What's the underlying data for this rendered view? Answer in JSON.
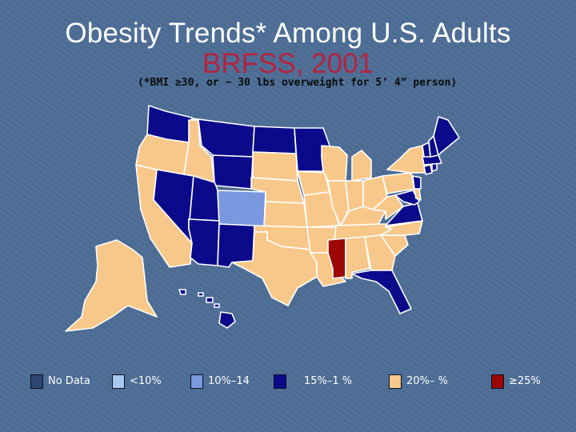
{
  "slide": {
    "title": "Obesity Trends* Among U.S. Adults",
    "subtitle": "BRFSS, 2001",
    "note": "(*BMI ≥30, or ~ 30 lbs overweight for 5’ 4” person)"
  },
  "colors": {
    "no_data": "#2f4770",
    "lt10": "#a8c8f0",
    "c10_14": "#7a98e0",
    "c15_19": "#0a0a8a",
    "c20_24": "#f8c88a",
    "ge25": "#9c0606"
  },
  "legend": [
    {
      "label": "No Data",
      "color_key": "no_data"
    },
    {
      "label": "<10%",
      "color_key": "lt10"
    },
    {
      "label": "10%–14",
      "color_key": "c10_14"
    },
    {
      "label": "15%–1   %",
      "color_key": "c15_19"
    },
    {
      "label": "20%–   %",
      "color_key": "c20_24"
    },
    {
      "label": "≥25%",
      "color_key": "ge25"
    }
  ],
  "map": {
    "states": {
      "WA": "c15_19",
      "OR": "c20_24",
      "CA": "c20_24",
      "NV": "c15_19",
      "ID": "c20_24",
      "MT": "c15_19",
      "WY": "c15_19",
      "UT": "c15_19",
      "AZ": "c15_19",
      "CO": "c10_14",
      "NM": "c15_19",
      "ND": "c15_19",
      "SD": "c20_24",
      "NE": "c20_24",
      "KS": "c20_24",
      "OK": "c20_24",
      "TX": "c20_24",
      "MN": "c15_19",
      "IA": "c20_24",
      "MO": "c20_24",
      "AR": "c20_24",
      "LA": "c20_24",
      "WI": "c20_24",
      "IL": "c20_24",
      "MI": "c20_24",
      "IN": "c20_24",
      "OH": "c20_24",
      "KY": "c20_24",
      "TN": "c20_24",
      "MS": "ge25",
      "AL": "c20_24",
      "GA": "c20_24",
      "FL": "c15_19",
      "SC": "c20_24",
      "NC": "c20_24",
      "VA": "c15_19",
      "WV": "c20_24",
      "PA": "c20_24",
      "NY": "c20_24",
      "MD": "c15_19",
      "DE": "c20_24",
      "NJ": "c15_19",
      "CT": "c15_19",
      "RI": "c15_19",
      "MA": "c15_19",
      "VT": "c15_19",
      "NH": "c15_19",
      "ME": "c15_19",
      "AK": "c20_24",
      "HI": "c15_19"
    }
  }
}
